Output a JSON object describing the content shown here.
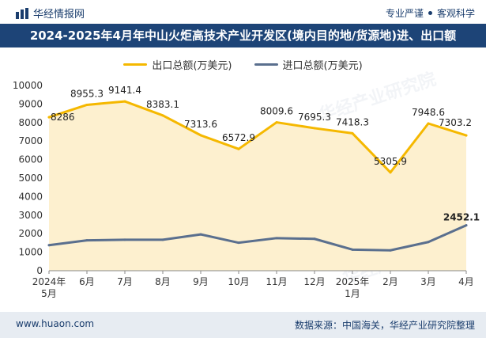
{
  "header": {
    "brand": "华经情报网",
    "slogan_left": "专业严谨",
    "slogan_right": "客观科学"
  },
  "title": "2024-2025年4月年中山火炬高技术产业开发区(境内目的地/货源地)进、出口额",
  "footer": {
    "url": "www.huaon.com",
    "source": "数据来源：中国海关，华经产业研究院整理"
  },
  "watermark": "华经产业研究院",
  "colors": {
    "export_line": "#f5b800",
    "export_fill": "#fdf0cf",
    "import_line": "#5a6f8e",
    "title_bg": "#1d4477",
    "axis": "#888888"
  },
  "chart_data": {
    "type": "line",
    "title": "2024-2025年4月年中山火炬高技术产业开发区(境内目的地/货源地)进、出口额",
    "categories": [
      [
        "2024年",
        "5月"
      ],
      [
        "6月"
      ],
      [
        "7月"
      ],
      [
        "8月"
      ],
      [
        "9月"
      ],
      [
        "10月"
      ],
      [
        "11月"
      ],
      [
        "12月"
      ],
      [
        "2025年",
        "1月"
      ],
      [
        "2月"
      ],
      [
        "3月"
      ],
      [
        "4月"
      ]
    ],
    "yticks": [
      0,
      1000,
      2000,
      3000,
      4000,
      5000,
      6000,
      7000,
      8000,
      9000,
      10000
    ],
    "ylim": [
      0,
      10000
    ],
    "series": [
      {
        "name": "出口总额(万美元)",
        "values": [
          8286,
          8955.3,
          9141.4,
          8383.1,
          7313.6,
          6572.9,
          8009.6,
          7695.3,
          7418.3,
          5305.9,
          7948.6,
          7303.2
        ],
        "labels": [
          "8286",
          "8955.3",
          "9141.4",
          "8383.1",
          "7313.6",
          "6572.9",
          "8009.6",
          "7695.3",
          "7418.3",
          "5305.9",
          "7948.6",
          "7303.2"
        ]
      },
      {
        "name": "进口总额(万美元)",
        "values": [
          1380,
          1640,
          1670,
          1670,
          1960,
          1510,
          1760,
          1720,
          1140,
          1100,
          1550,
          2452.1
        ],
        "labels": [
          "",
          "",
          "",
          "",
          "",
          "",
          "",
          "",
          "",
          "",
          "",
          "2452.1"
        ]
      }
    ]
  }
}
